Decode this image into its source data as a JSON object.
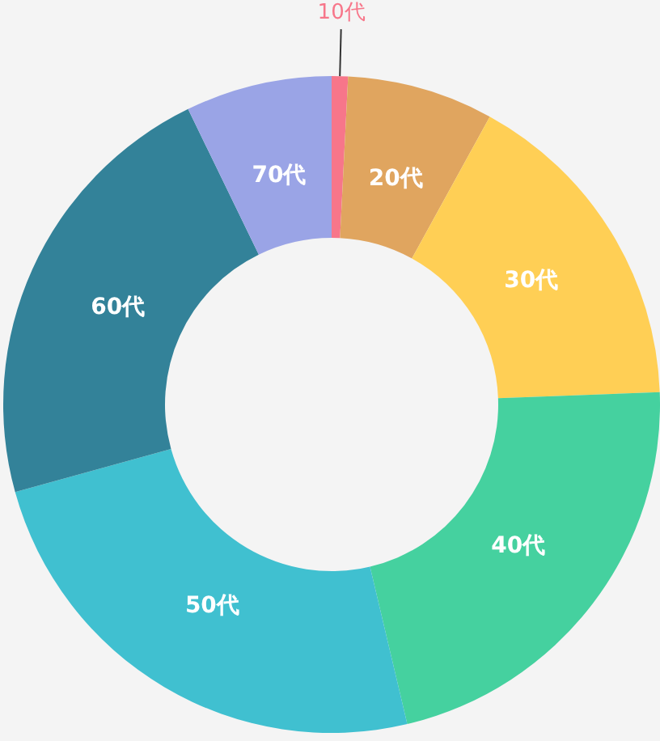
{
  "chart_data": {
    "type": "donut",
    "categories": [
      "10代",
      "20代",
      "30代",
      "40代",
      "50代",
      "60代",
      "70代"
    ],
    "values": [
      0.8,
      7.2,
      16.4,
      21.9,
      24.4,
      22.1,
      7.2
    ],
    "colors": [
      "#f7768a",
      "#e0a55f",
      "#ffcf55",
      "#45d19f",
      "#40c0d0",
      "#338299",
      "#9aa4e6"
    ],
    "legend": false
  }
}
